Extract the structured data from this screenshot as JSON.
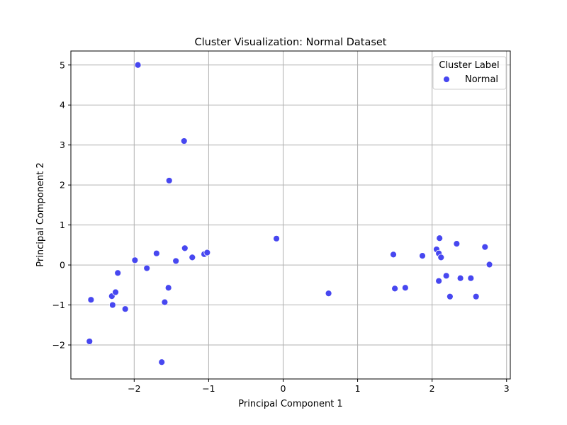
{
  "chart_data": {
    "type": "scatter",
    "title": "Cluster Visualization: Normal Dataset",
    "xlabel": "Principal Component 1",
    "ylabel": "Principal Component 2",
    "xlim": [
      -2.85,
      3.05
    ],
    "ylim": [
      -2.85,
      5.35
    ],
    "xticks": [
      -2,
      -1,
      0,
      1,
      2,
      3
    ],
    "yticks": [
      -2,
      -1,
      0,
      1,
      2,
      3,
      4,
      5
    ],
    "xtick_labels": [
      "−2",
      "−1",
      "0",
      "1",
      "2",
      "3"
    ],
    "ytick_labels": [
      "−2",
      "−1",
      "0",
      "1",
      "2",
      "3",
      "4",
      "5"
    ],
    "grid": true,
    "legend": {
      "title": "Cluster Label",
      "position": "top-right"
    },
    "series": [
      {
        "name": "Normal",
        "color": "#4747f0",
        "points": [
          [
            -1.95,
            5.0
          ],
          [
            -1.33,
            3.1
          ],
          [
            -1.53,
            2.11
          ],
          [
            -2.58,
            -0.87
          ],
          [
            -2.6,
            -1.91
          ],
          [
            -2.3,
            -0.78
          ],
          [
            -2.25,
            -0.68
          ],
          [
            -2.29,
            -1.0
          ],
          [
            -2.12,
            -1.1
          ],
          [
            -2.22,
            -0.2
          ],
          [
            -1.99,
            0.12
          ],
          [
            -1.83,
            -0.08
          ],
          [
            -1.7,
            0.29
          ],
          [
            -1.54,
            -0.57
          ],
          [
            -1.59,
            -0.93
          ],
          [
            -1.63,
            -2.43
          ],
          [
            -1.44,
            0.1
          ],
          [
            -1.32,
            0.42
          ],
          [
            -1.22,
            0.19
          ],
          [
            -1.06,
            0.27
          ],
          [
            -1.02,
            0.31
          ],
          [
            -0.09,
            0.66
          ],
          [
            0.61,
            -0.71
          ],
          [
            1.48,
            0.26
          ],
          [
            1.5,
            -0.59
          ],
          [
            1.64,
            -0.57
          ],
          [
            1.87,
            0.23
          ],
          [
            2.06,
            0.39
          ],
          [
            2.09,
            0.29
          ],
          [
            2.1,
            0.67
          ],
          [
            2.12,
            0.19
          ],
          [
            2.09,
            -0.4
          ],
          [
            2.19,
            -0.27
          ],
          [
            2.24,
            -0.79
          ],
          [
            2.33,
            0.53
          ],
          [
            2.38,
            -0.33
          ],
          [
            2.52,
            -0.33
          ],
          [
            2.59,
            -0.79
          ],
          [
            2.71,
            0.45
          ],
          [
            2.77,
            0.01
          ]
        ]
      }
    ]
  }
}
